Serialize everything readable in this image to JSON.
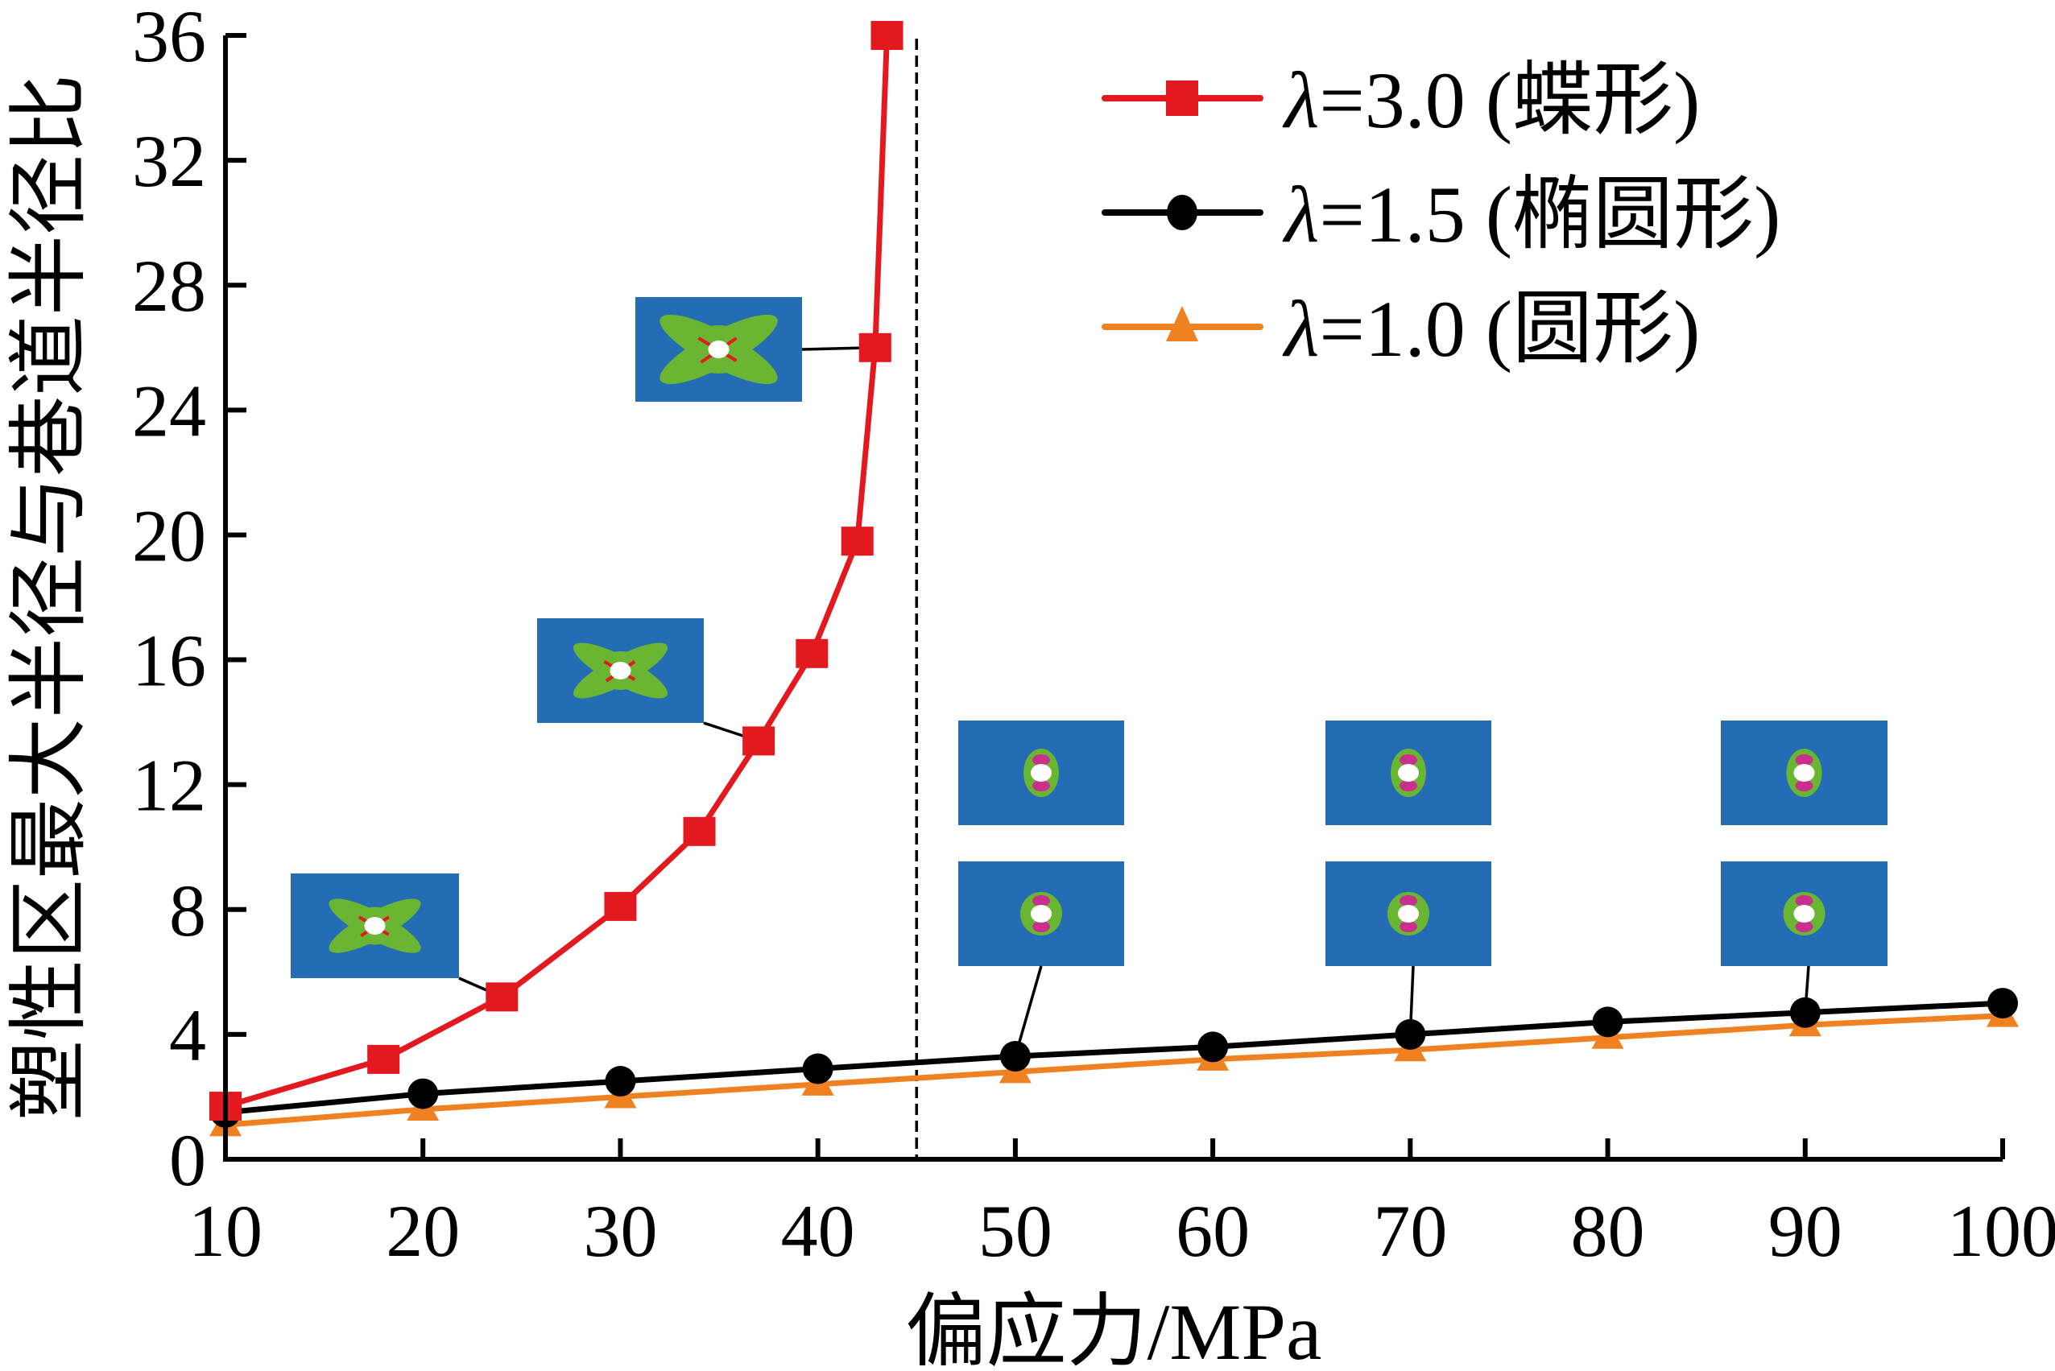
{
  "chart_data": {
    "type": "line",
    "title": "",
    "xlabel": "偏应力/MPa",
    "ylabel": "塑性区最大半径与巷道半径比",
    "xlim": [
      10,
      100
    ],
    "ylim": [
      0,
      36
    ],
    "xticks": [
      10,
      20,
      30,
      40,
      50,
      60,
      70,
      80,
      90,
      100
    ],
    "yticks": [
      0,
      4,
      8,
      12,
      16,
      20,
      24,
      28,
      32,
      36
    ],
    "xtick_labels": [
      "10",
      "20",
      "30",
      "40",
      "50",
      "60",
      "70",
      "80",
      "90",
      "100"
    ],
    "ytick_labels": [
      "0",
      "4",
      "8",
      "12",
      "16",
      "20",
      "24",
      "28",
      "32",
      "36"
    ],
    "grid": false,
    "legend_position": "top-right",
    "reference_line": {
      "x": 45,
      "style": "dashed"
    },
    "series": [
      {
        "name": "λ=3.0 (蝶形)",
        "lambda_symbol": "λ",
        "label_rest": "=3.0 (蝶形)",
        "color": "#e3191f",
        "marker": "square",
        "x": [
          10,
          18,
          24,
          30,
          34,
          37,
          39.7,
          42,
          42.9,
          43.5
        ],
        "y": [
          1.7,
          3.2,
          5.2,
          8.1,
          10.5,
          13.4,
          16.2,
          19.8,
          26.0,
          36.0
        ]
      },
      {
        "name": "λ=1.5 (椭圆形)",
        "lambda_symbol": "λ",
        "label_rest": "=1.5 (椭圆形)",
        "color": "#000000",
        "marker": "circle",
        "x": [
          10,
          20,
          30,
          40,
          50,
          60,
          70,
          80,
          90,
          100
        ],
        "y": [
          1.5,
          2.1,
          2.5,
          2.9,
          3.3,
          3.6,
          4.0,
          4.4,
          4.7,
          5.0
        ]
      },
      {
        "name": "λ=1.0 (圆形)",
        "lambda_symbol": "λ",
        "label_rest": "=1.0 (圆形)",
        "color": "#ef8120",
        "marker": "triangle",
        "x": [
          10,
          20,
          30,
          40,
          50,
          60,
          70,
          80,
          90,
          100
        ],
        "y": [
          1.1,
          1.6,
          2.0,
          2.4,
          2.8,
          3.2,
          3.5,
          3.9,
          4.3,
          4.6
        ]
      }
    ],
    "insets": [
      {
        "name": "plastic-zone-butterfly-small",
        "shape": "butterfly",
        "series": "λ=3.0 (蝶形)",
        "points_to_x": 24
      },
      {
        "name": "plastic-zone-butterfly-medium",
        "shape": "butterfly",
        "series": "λ=3.0 (蝶形)",
        "points_to_x": 37
      },
      {
        "name": "plastic-zone-butterfly-large",
        "shape": "butterfly",
        "series": "λ=3.0 (蝶形)",
        "points_to_x": 42.9
      },
      {
        "name": "plastic-zone-ellipse-50",
        "shape": "ellipse",
        "series": "λ=1.5 (椭圆形)",
        "points_to_x": 50
      },
      {
        "name": "plastic-zone-circle-50",
        "shape": "circle",
        "series": "λ=1.0 (圆形)",
        "points_to_x": 50
      },
      {
        "name": "plastic-zone-ellipse-70",
        "shape": "ellipse",
        "series": "λ=1.5 (椭圆形)",
        "points_to_x": 70
      },
      {
        "name": "plastic-zone-circle-70",
        "shape": "circle",
        "series": "λ=1.0 (圆形)",
        "points_to_x": 70
      },
      {
        "name": "plastic-zone-ellipse-90",
        "shape": "ellipse",
        "series": "λ=1.5 (椭圆形)",
        "points_to_x": 90
      },
      {
        "name": "plastic-zone-circle-90",
        "shape": "circle",
        "series": "λ=1.0 (圆形)",
        "points_to_x": 90
      }
    ],
    "inset_colors": {
      "background": "#246db5",
      "plastic": "#6ab531",
      "tension": "#c8308c",
      "shear": "#e3191f",
      "opening": "#ffffff"
    }
  }
}
